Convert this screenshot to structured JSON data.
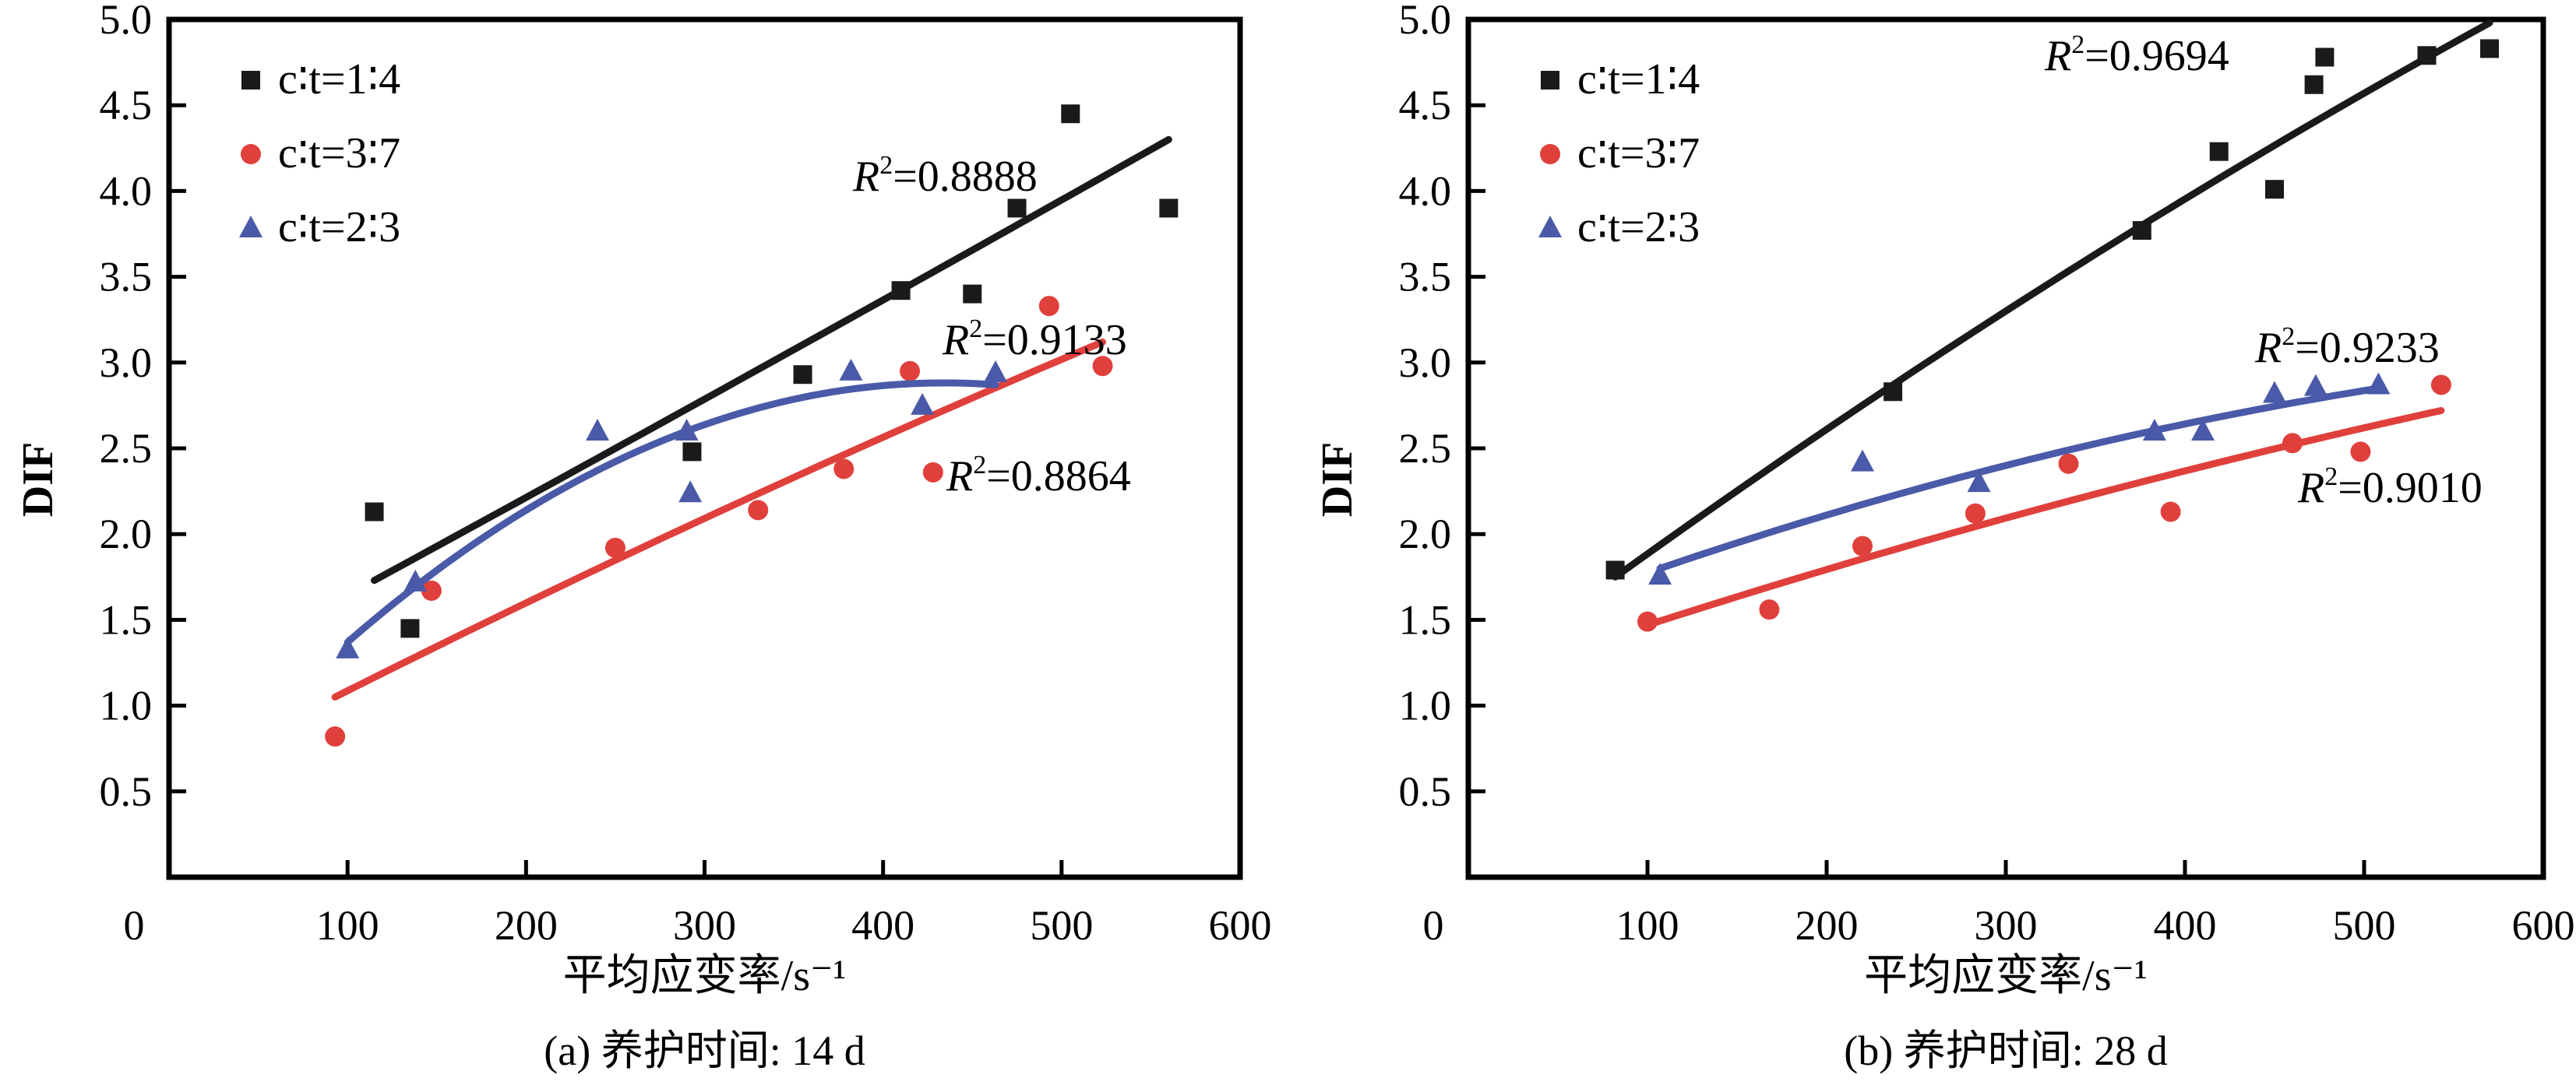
{
  "colors": {
    "c14": "#1a1a1a",
    "c37": "#e0403c",
    "c23": "#4a5aa8"
  },
  "chart_data": [
    {
      "type": "scatter",
      "caption": "(a) 养护时间: 14 d",
      "xlabel": "平均应变率/s⁻¹",
      "ylabel": "DIF",
      "xlim": [
        0,
        600
      ],
      "ylim": [
        0,
        5.0
      ],
      "xticks": [
        "0",
        "100",
        "200",
        "300",
        "400",
        "500",
        "600"
      ],
      "yticks": [
        "0.5",
        "1.0",
        "1.5",
        "2.0",
        "2.5",
        "3.0",
        "3.5",
        "4.0",
        "4.5",
        "5.0"
      ],
      "legend_position": "top-left",
      "series": [
        {
          "name": "c∶t=1∶4",
          "marker": "square",
          "color": "#1a1a1a",
          "points": [
            [
              115,
              2.13
            ],
            [
              135,
              1.45
            ],
            [
              293,
              2.48
            ],
            [
              355,
              2.93
            ],
            [
              410,
              3.42
            ],
            [
              450,
              3.4
            ],
            [
              475,
              3.9
            ],
            [
              505,
              4.45
            ],
            [
              560,
              3.9
            ]
          ],
          "fit": [
            [
              115,
              1.73
            ],
            [
              337,
              3.0
            ],
            [
              560,
              4.3
            ]
          ],
          "r2": "R²=0.8888"
        },
        {
          "name": "c∶t=3∶7",
          "marker": "circle",
          "color": "#e0403c",
          "points": [
            [
              93,
              0.82
            ],
            [
              147,
              1.67
            ],
            [
              250,
              1.92
            ],
            [
              330,
              2.14
            ],
            [
              378,
              2.38
            ],
            [
              415,
              2.95
            ],
            [
              428,
              2.36
            ],
            [
              493,
              3.33
            ],
            [
              523,
              2.98
            ]
          ],
          "fit": [
            [
              93,
              1.05
            ],
            [
              308,
              2.13
            ],
            [
              523,
              3.12
            ]
          ],
          "r2": "R²=0.8864"
        },
        {
          "name": "c∶t=2∶3",
          "marker": "triangle",
          "color": "#4a5aa8",
          "points": [
            [
              100,
              1.33
            ],
            [
              138,
              1.72
            ],
            [
              240,
              2.6
            ],
            [
              290,
              2.6
            ],
            [
              292,
              2.24
            ],
            [
              382,
              2.95
            ],
            [
              422,
              2.75
            ],
            [
              463,
              2.94
            ]
          ],
          "fit": [
            [
              100,
              1.37
            ],
            [
              280,
              2.56
            ],
            [
              463,
              2.87
            ]
          ],
          "r2": "R²=0.9133"
        }
      ]
    },
    {
      "type": "scatter",
      "caption": "(b) 养护时间: 28 d",
      "xlabel": "平均应变率/s⁻¹",
      "ylabel": "DIF",
      "xlim": [
        0,
        600
      ],
      "ylim": [
        0,
        5.0
      ],
      "xticks": [
        "0",
        "100",
        "200",
        "300",
        "400",
        "500",
        "600"
      ],
      "yticks": [
        "0.5",
        "1.0",
        "1.5",
        "2.0",
        "2.5",
        "3.0",
        "3.5",
        "4.0",
        "4.5",
        "5.0"
      ],
      "legend_position": "top-left",
      "series": [
        {
          "name": "c∶t=1∶4",
          "marker": "square",
          "color": "#1a1a1a",
          "points": [
            [
              82,
              1.79
            ],
            [
              237,
              2.83
            ],
            [
              376,
              3.77
            ],
            [
              419,
              4.23
            ],
            [
              450,
              4.01
            ],
            [
              472,
              4.62
            ],
            [
              478,
              4.78
            ],
            [
              535,
              4.79
            ],
            [
              570,
              4.83
            ]
          ],
          "fit": [
            [
              82,
              1.75
            ],
            [
              300,
              3.3
            ],
            [
              570,
              4.98
            ]
          ],
          "r2": "R²=0.9694"
        },
        {
          "name": "c∶t=3∶7",
          "marker": "circle",
          "color": "#e0403c",
          "points": [
            [
              100,
              1.49
            ],
            [
              168,
              1.56
            ],
            [
              220,
              1.93
            ],
            [
              283,
              2.12
            ],
            [
              335,
              2.41
            ],
            [
              392,
              2.13
            ],
            [
              460,
              2.53
            ],
            [
              498,
              2.48
            ],
            [
              543,
              2.87
            ]
          ],
          "fit": [
            [
              100,
              1.47
            ],
            [
              320,
              2.15
            ],
            [
              543,
              2.72
            ]
          ],
          "r2": "R²=0.9010"
        },
        {
          "name": "c∶t=2∶3",
          "marker": "triangle",
          "color": "#4a5aa8",
          "points": [
            [
              107,
              1.76
            ],
            [
              220,
              2.42
            ],
            [
              285,
              2.3
            ],
            [
              383,
              2.6
            ],
            [
              410,
              2.6
            ],
            [
              450,
              2.82
            ],
            [
              473,
              2.86
            ],
            [
              508,
              2.87
            ]
          ],
          "fit": [
            [
              107,
              1.8
            ],
            [
              300,
              2.4
            ],
            [
              508,
              2.85
            ]
          ],
          "r2": "R²=0.9233"
        }
      ]
    }
  ]
}
